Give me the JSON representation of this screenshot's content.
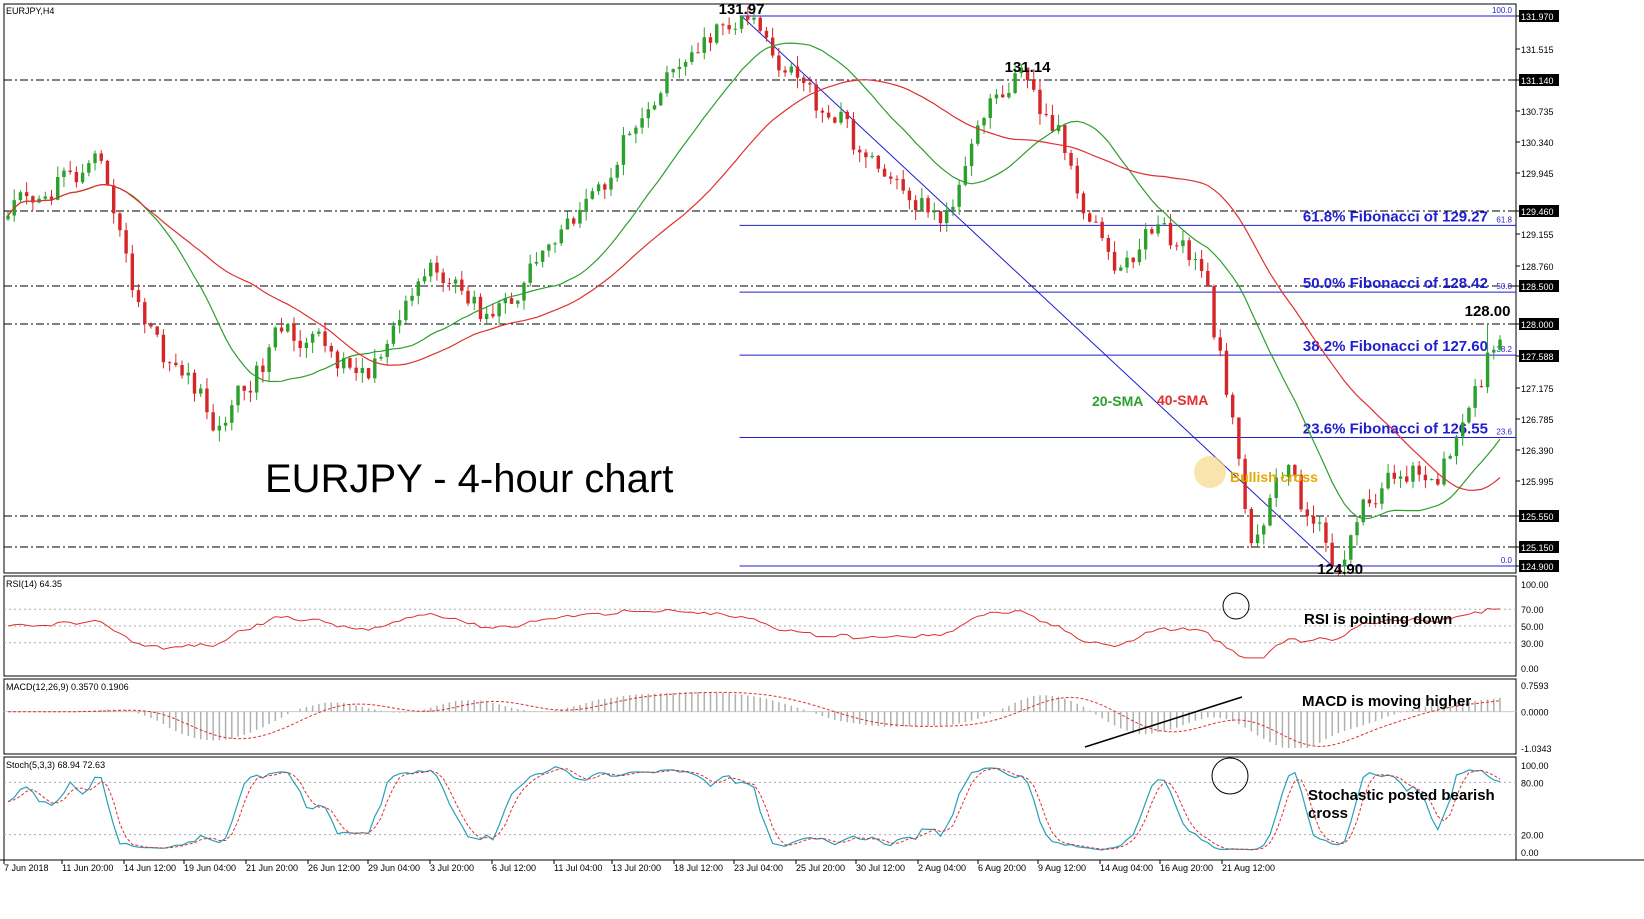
{
  "window": {
    "symbol": "EURJPY,H4"
  },
  "headline": "EURJPY - 4-hour chart",
  "colors": {
    "up": "#2ca02c",
    "down": "#d62728",
    "sma20": "#2ca02c",
    "sma40": "#e03030",
    "fib": "#1f1fcf",
    "rsi": "#e03030",
    "stoch_main": "#27a0b8",
    "stoch_signal": "#e03030",
    "bullish": "#e5a800"
  },
  "chart_data": [
    {
      "type": "candlestick",
      "pane": "price",
      "ylim": [
        124.9,
        131.97
      ],
      "tick_labels": [
        "131.970",
        "131.515",
        "131.140",
        "130.735",
        "130.340",
        "129.945",
        "129.460",
        "129.155",
        "128.760",
        "128.500",
        "128.000",
        "127.588",
        "127.175",
        "126.785",
        "126.390",
        "125.995",
        "125.550",
        "125.150",
        "124.900"
      ],
      "x_labels": [
        "7 Jun 2018",
        "11 Jun 20:00",
        "14 Jun 12:00",
        "19 Jun 04:00",
        "21 Jun 20:00",
        "26 Jun 12:00",
        "29 Jun 04:00",
        "3 Jul 20:00",
        "6 Jul 12:00",
        "11 Jul 04:00",
        "13 Jul 20:00",
        "18 Jul 12:00",
        "23 Jul 04:00",
        "25 Jul 20:00",
        "30 Jul 12:00",
        "2 Aug 04:00",
        "6 Aug 20:00",
        "9 Aug 12:00",
        "14 Aug 04:00",
        "16 Aug 20:00",
        "21 Aug 12:00"
      ],
      "key_points": [
        {
          "x": 0,
          "price": 129.4
        },
        {
          "x": 15,
          "price": 130.1
        },
        {
          "x": 22,
          "price": 128.0
        },
        {
          "x": 34,
          "price": 126.7
        },
        {
          "x": 45,
          "price": 128.0
        },
        {
          "x": 58,
          "price": 127.3
        },
        {
          "x": 68,
          "price": 128.8
        },
        {
          "x": 78,
          "price": 128.1
        },
        {
          "x": 95,
          "price": 129.8
        },
        {
          "x": 108,
          "price": 131.3
        },
        {
          "x": 118,
          "price": 131.97
        },
        {
          "x": 128,
          "price": 131.1
        },
        {
          "x": 140,
          "price": 130.0
        },
        {
          "x": 150,
          "price": 129.3
        },
        {
          "x": 158,
          "price": 130.9
        },
        {
          "x": 164,
          "price": 131.14
        },
        {
          "x": 170,
          "price": 130.2
        },
        {
          "x": 178,
          "price": 128.7
        },
        {
          "x": 186,
          "price": 129.3
        },
        {
          "x": 193,
          "price": 128.5
        },
        {
          "x": 200,
          "price": 125.2
        },
        {
          "x": 206,
          "price": 126.2
        },
        {
          "x": 213,
          "price": 124.9
        },
        {
          "x": 222,
          "price": 126.1
        },
        {
          "x": 230,
          "price": 125.95
        },
        {
          "x": 236,
          "price": 127.2
        },
        {
          "x": 240,
          "price": 127.8
        }
      ],
      "last_bar": 240,
      "levels": [
        {
          "label": "131.97",
          "price": 131.97
        },
        {
          "label": "131.14",
          "price": 131.14
        },
        {
          "label": "128.00",
          "price": 128.0
        },
        {
          "label": "124.90",
          "price": 124.9
        }
      ],
      "dashed_levels": [
        131.14,
        129.46,
        128.5,
        128.0,
        125.55,
        125.15
      ],
      "boxed_labels": [
        "131.970",
        "131.140",
        "129.460",
        "128.500",
        "128.000",
        "127.588",
        "125.550",
        "125.150",
        "124.900"
      ],
      "fibonacci": [
        {
          "label": "61.8% Fibonacci of 129.27",
          "price": 129.27,
          "pct": "61.8"
        },
        {
          "label": "50.0% Fibonacci of 128.42",
          "price": 128.42,
          "pct": "50.0"
        },
        {
          "label": "38.2% Fibonacci of 127.60",
          "price": 127.6,
          "pct": "38.2"
        },
        {
          "label": "23.6% Fibonacci of 126.55",
          "price": 126.55,
          "pct": "23.6"
        }
      ],
      "fib_top_pct": "100.0",
      "fib_bottom_pct": "0.0",
      "sma_labels": {
        "sma20": "20-SMA",
        "sma40": "40-SMA"
      },
      "annotation": "Bullish cross"
    },
    {
      "type": "line",
      "pane": "rsi",
      "label": "RSI(14) 64.35",
      "ylim": [
        0,
        100
      ],
      "tick_labels": [
        "100.00",
        "70.00",
        "50.00",
        "30.00",
        "0.00"
      ],
      "annotation": "RSI is pointing down"
    },
    {
      "type": "histogram+line",
      "pane": "macd",
      "label": "MACD(12,26,9) 0.3570 0.1906",
      "ylim": [
        -1.0343,
        0.7593
      ],
      "tick_labels": [
        "0.7593",
        "0.0000",
        "-1.0343"
      ],
      "annotation": "MACD is moving higher"
    },
    {
      "type": "line",
      "pane": "stochastic",
      "label": "Stoch(5,3,3) 68.94 72.63",
      "ylim": [
        0,
        100
      ],
      "tick_labels": [
        "100.00",
        "80.00",
        "20.00",
        "0.00"
      ],
      "annotation": "Stochastic posted bearish cross"
    }
  ]
}
